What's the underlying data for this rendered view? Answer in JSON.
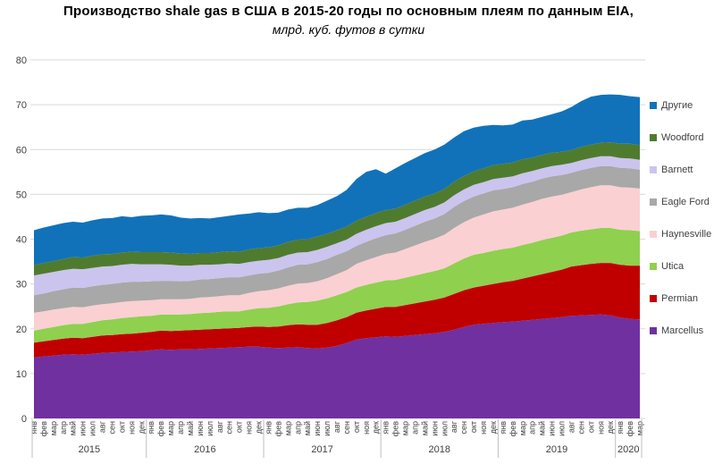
{
  "title": {
    "line1": "Производство shale gas в США в 2015-20 годы по основным плеям по данным EIA,",
    "line2": "млрд. куб. футов в сутки"
  },
  "chart_data": {
    "type": "area",
    "stacked": true,
    "title": "Производство shale gas в США в 2015-20 годы по основным плеям по данным EIA,",
    "subtitle": "млрд. куб. футов в сутки",
    "ylabel": "млрд. куб. футов в сутки",
    "xlabel": "",
    "ylim": [
      0,
      80
    ],
    "yticks": [
      0,
      10,
      20,
      30,
      40,
      50,
      60,
      70,
      80
    ],
    "grid": "horizontal",
    "grid_color": "#D9D9D9",
    "axis_text_color": "#404040",
    "legend_position": "right",
    "legend_order_top_to_bottom": [
      "Другие",
      "Woodford",
      "Barnett",
      "Eagle Ford",
      "Haynesville",
      "Utica",
      "Permian",
      "Marcellus"
    ],
    "categories": [
      "янв",
      "фев",
      "мар",
      "апр",
      "май",
      "июн",
      "июл",
      "авг",
      "сен",
      "окт",
      "ноя",
      "дек",
      "янв",
      "фев",
      "мар",
      "апр",
      "май",
      "июн",
      "июл",
      "авг",
      "сен",
      "окт",
      "ноя",
      "дек",
      "янв",
      "фев",
      "мар",
      "апр",
      "май",
      "июн",
      "июл",
      "авг",
      "сен",
      "окт",
      "ноя",
      "дек",
      "янв",
      "фев",
      "мар",
      "апр",
      "май",
      "июн",
      "июл",
      "авг",
      "сен",
      "окт",
      "ноя",
      "дек",
      "янв",
      "фев",
      "мар",
      "апр",
      "май",
      "июн",
      "июл",
      "авг",
      "сен",
      "окт",
      "ноя",
      "дек",
      "янв",
      "фев",
      "мар"
    ],
    "years": [
      {
        "label": "2015",
        "months": 12
      },
      {
        "label": "2016",
        "months": 12
      },
      {
        "label": "2017",
        "months": 12
      },
      {
        "label": "2018",
        "months": 12
      },
      {
        "label": "2019",
        "months": 12
      },
      {
        "label": "2020",
        "months": 3
      }
    ],
    "series": [
      {
        "id": "marcellus",
        "name": "Marcellus",
        "color": "#7030A0",
        "values": [
          13.6,
          13.8,
          14.0,
          14.2,
          14.3,
          14.2,
          14.4,
          14.6,
          14.7,
          14.8,
          14.9,
          15.0,
          15.2,
          15.4,
          15.3,
          15.4,
          15.4,
          15.5,
          15.6,
          15.7,
          15.8,
          15.9,
          16.0,
          16.0,
          15.8,
          15.7,
          15.8,
          15.9,
          15.7,
          15.6,
          15.8,
          16.2,
          16.8,
          17.6,
          17.9,
          18.1,
          18.3,
          18.2,
          18.4,
          18.6,
          18.8,
          19.0,
          19.3,
          19.8,
          20.4,
          20.9,
          21.1,
          21.3,
          21.5,
          21.6,
          21.8,
          22.0,
          22.2,
          22.4,
          22.6,
          22.9,
          23.0,
          23.1,
          23.2,
          23.0,
          22.5,
          22.2,
          22.1
        ]
      },
      {
        "id": "permian",
        "name": "Permian",
        "color": "#C00000",
        "values": [
          3.3,
          3.4,
          3.5,
          3.6,
          3.7,
          3.7,
          3.8,
          3.9,
          3.9,
          4.0,
          4.0,
          4.1,
          4.1,
          4.2,
          4.2,
          4.2,
          4.3,
          4.3,
          4.3,
          4.3,
          4.3,
          4.3,
          4.4,
          4.5,
          4.6,
          4.8,
          5.0,
          5.1,
          5.2,
          5.3,
          5.5,
          5.7,
          5.8,
          6.0,
          6.2,
          6.4,
          6.6,
          6.7,
          6.9,
          7.1,
          7.3,
          7.5,
          7.7,
          8.0,
          8.2,
          8.3,
          8.5,
          8.7,
          8.9,
          9.1,
          9.4,
          9.7,
          10.0,
          10.3,
          10.6,
          11.0,
          11.2,
          11.4,
          11.5,
          11.7,
          11.8,
          11.9,
          12.0
        ]
      },
      {
        "id": "utica",
        "name": "Utica",
        "color": "#8FD04E",
        "values": [
          2.7,
          2.8,
          2.9,
          3.0,
          3.1,
          3.2,
          3.3,
          3.4,
          3.5,
          3.6,
          3.7,
          3.7,
          3.6,
          3.6,
          3.7,
          3.6,
          3.6,
          3.7,
          3.7,
          3.8,
          3.8,
          3.7,
          3.9,
          4.1,
          4.3,
          4.5,
          4.7,
          4.9,
          5.1,
          5.4,
          5.5,
          5.6,
          5.6,
          5.6,
          5.7,
          5.8,
          5.9,
          6.0,
          6.1,
          6.2,
          6.3,
          6.4,
          6.5,
          6.8,
          7.1,
          7.3,
          7.3,
          7.4,
          7.4,
          7.4,
          7.5,
          7.5,
          7.6,
          7.6,
          7.6,
          7.6,
          7.7,
          7.7,
          7.8,
          7.8,
          7.8,
          7.9,
          7.7
        ]
      },
      {
        "id": "haynesville",
        "name": "Haynesville",
        "color": "#FAD0D3",
        "values": [
          4.0,
          3.9,
          3.9,
          3.8,
          3.8,
          3.7,
          3.7,
          3.6,
          3.6,
          3.6,
          3.6,
          3.5,
          3.5,
          3.4,
          3.4,
          3.4,
          3.4,
          3.5,
          3.5,
          3.5,
          3.6,
          3.6,
          3.7,
          3.8,
          3.9,
          4.0,
          4.1,
          4.2,
          4.2,
          4.3,
          4.5,
          4.7,
          4.9,
          5.3,
          5.5,
          5.7,
          5.9,
          6.1,
          6.4,
          6.7,
          7.0,
          7.2,
          7.5,
          7.9,
          8.1,
          8.3,
          8.6,
          8.8,
          8.8,
          8.9,
          9.0,
          9.1,
          9.2,
          9.2,
          9.1,
          9.0,
          9.2,
          9.4,
          9.5,
          9.5,
          9.5,
          9.5,
          9.5
        ]
      },
      {
        "id": "eagle-ford",
        "name": "Eagle Ford",
        "color": "#A8A8A8",
        "values": [
          3.9,
          4.0,
          4.1,
          4.2,
          4.3,
          4.3,
          4.3,
          4.3,
          4.3,
          4.3,
          4.3,
          4.2,
          4.2,
          4.1,
          4.1,
          4.0,
          4.0,
          4.0,
          4.0,
          4.0,
          4.0,
          4.0,
          3.9,
          3.9,
          3.9,
          4.0,
          4.1,
          4.2,
          4.2,
          4.3,
          4.3,
          4.3,
          4.2,
          4.0,
          4.1,
          4.2,
          4.2,
          4.3,
          4.3,
          4.4,
          4.5,
          4.5,
          4.6,
          4.7,
          4.7,
          4.7,
          4.7,
          4.7,
          4.6,
          4.6,
          4.6,
          4.5,
          4.5,
          4.5,
          4.4,
          4.3,
          4.3,
          4.3,
          4.3,
          4.3,
          4.3,
          4.3,
          4.2
        ]
      },
      {
        "id": "barnett",
        "name": "Barnett",
        "color": "#CBC4EE",
        "values": [
          4.4,
          4.4,
          4.3,
          4.3,
          4.2,
          4.2,
          4.1,
          4.1,
          4.0,
          4.0,
          4.0,
          3.9,
          3.8,
          3.7,
          3.6,
          3.5,
          3.4,
          3.3,
          3.2,
          3.1,
          3.1,
          3.0,
          3.0,
          2.9,
          2.9,
          2.8,
          2.8,
          2.7,
          2.7,
          2.7,
          2.7,
          2.6,
          2.6,
          2.7,
          2.7,
          2.7,
          2.7,
          2.6,
          2.6,
          2.6,
          2.6,
          2.6,
          2.6,
          2.6,
          2.6,
          2.6,
          2.5,
          2.5,
          2.5,
          2.4,
          2.4,
          2.4,
          2.3,
          2.3,
          2.3,
          2.2,
          2.2,
          2.2,
          2.2,
          2.2,
          2.2,
          2.2,
          2.2
        ]
      },
      {
        "id": "woodford",
        "name": "Woodford",
        "color": "#4F7B2F",
        "values": [
          2.3,
          2.4,
          2.4,
          2.5,
          2.6,
          2.6,
          2.7,
          2.7,
          2.7,
          2.7,
          2.7,
          2.7,
          2.7,
          2.7,
          2.7,
          2.7,
          2.6,
          2.6,
          2.6,
          2.7,
          2.7,
          2.7,
          2.8,
          2.8,
          2.8,
          2.8,
          2.9,
          2.9,
          2.9,
          3.0,
          2.9,
          2.9,
          2.9,
          2.9,
          2.9,
          2.9,
          2.9,
          2.9,
          3.0,
          3.0,
          3.0,
          3.0,
          3.0,
          3.0,
          3.0,
          3.0,
          3.1,
          3.1,
          3.1,
          3.1,
          3.1,
          3.0,
          3.0,
          3.0,
          2.9,
          2.9,
          3.0,
          3.0,
          3.0,
          3.1,
          3.2,
          3.3,
          3.3
        ]
      },
      {
        "id": "drugie",
        "name": "Другие",
        "color": "#1172BA",
        "values": [
          7.8,
          7.9,
          8.0,
          8.0,
          7.9,
          7.8,
          7.9,
          8.0,
          8.0,
          8.1,
          7.7,
          8.1,
          8.2,
          8.4,
          8.3,
          8.0,
          7.9,
          7.8,
          7.7,
          7.8,
          7.9,
          8.3,
          8.0,
          8.0,
          7.6,
          7.3,
          7.2,
          7.1,
          7.0,
          7.0,
          7.4,
          7.6,
          8.2,
          9.3,
          10.0,
          9.8,
          8.1,
          9.0,
          9.3,
          9.5,
          9.7,
          9.8,
          9.9,
          9.9,
          10.0,
          9.8,
          9.5,
          9.0,
          8.6,
          8.5,
          8.7,
          8.5,
          8.5,
          8.6,
          9.0,
          9.6,
          10.2,
          10.7,
          10.7,
          10.7,
          10.9,
          10.6,
          10.7
        ]
      }
    ]
  }
}
